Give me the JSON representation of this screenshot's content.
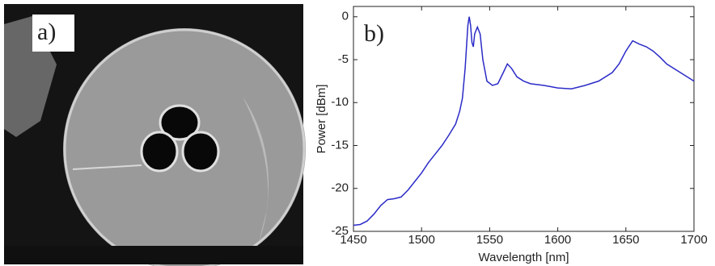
{
  "image_panel": {
    "label": "a)"
  },
  "chart_data": {
    "type": "line",
    "panel_label": "b)",
    "x_label": "Wavelength [nm]",
    "y_label": "Power [dBm]",
    "x": [
      1450,
      1455,
      1460,
      1465,
      1470,
      1475,
      1480,
      1485,
      1490,
      1495,
      1500,
      1505,
      1510,
      1515,
      1520,
      1525,
      1528,
      1530,
      1532,
      1534,
      1535,
      1536,
      1537,
      1538,
      1539,
      1541,
      1543,
      1545,
      1548,
      1552,
      1556,
      1560,
      1563,
      1566,
      1570,
      1575,
      1580,
      1590,
      1600,
      1610,
      1620,
      1630,
      1640,
      1645,
      1650,
      1655,
      1660,
      1665,
      1670,
      1675,
      1680,
      1690,
      1700
    ],
    "series": [
      {
        "color": "#2b2bc8",
        "values": [
          -24.3,
          -24.2,
          -23.8,
          -23,
          -22,
          -21.3,
          -21.2,
          -21,
          -20.2,
          -19.2,
          -18.2,
          -17,
          -16,
          -15,
          -13.8,
          -12.5,
          -11,
          -9.5,
          -6,
          -1,
          0,
          -1,
          -3,
          -3.5,
          -2,
          -1.2,
          -2,
          -5,
          -7.5,
          -8,
          -7.8,
          -6.5,
          -5.5,
          -6,
          -7,
          -7.5,
          -7.8,
          -8,
          -8.3,
          -8.4,
          -8,
          -7.5,
          -6.5,
          -5.5,
          -4,
          -2.8,
          -3.2,
          -3.5,
          -4,
          -4.7,
          -5.5,
          -6.5,
          -7.5
        ]
      }
    ],
    "xlim": [
      1450,
      1700
    ],
    "ylim": [
      -25,
      1.2
    ],
    "xticks": [
      1450,
      1500,
      1550,
      1600,
      1650,
      1700
    ],
    "yticks": [
      0,
      -5,
      -10,
      -15,
      -20,
      -25
    ]
  }
}
